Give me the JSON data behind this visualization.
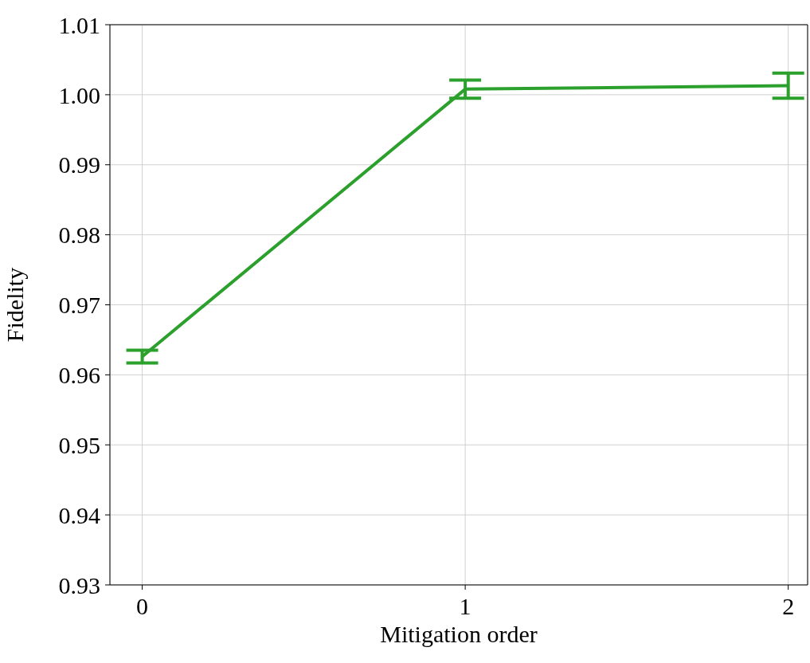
{
  "chart_data": {
    "type": "line",
    "xlabel": "Mitigation order",
    "ylabel": "Fidelity",
    "x": [
      0,
      1,
      2
    ],
    "series": [
      {
        "color": "#2ca02c",
        "values": [
          0.9626,
          1.0008,
          1.0013
        ],
        "errors": [
          0.0009,
          0.0013,
          0.0018
        ]
      }
    ],
    "xlim": [
      -0.1,
      2.06
    ],
    "xticks": [
      0,
      1,
      2
    ],
    "ylim": [
      0.93,
      1.01
    ],
    "yticks": [
      {
        "value": 0.93,
        "label": "0.93"
      },
      {
        "value": 0.94,
        "label": "0.94"
      },
      {
        "value": 0.95,
        "label": "0.95"
      },
      {
        "value": 0.96,
        "label": "0.96"
      },
      {
        "value": 0.97,
        "label": "0.97"
      },
      {
        "value": 0.98,
        "label": "0.98"
      },
      {
        "value": 0.99,
        "label": "0.99"
      },
      {
        "value": 1.0,
        "label": "1.00"
      },
      {
        "value": 1.01,
        "label": "1.01"
      }
    ],
    "grid": true,
    "marker": "none",
    "line_style": "solid"
  }
}
